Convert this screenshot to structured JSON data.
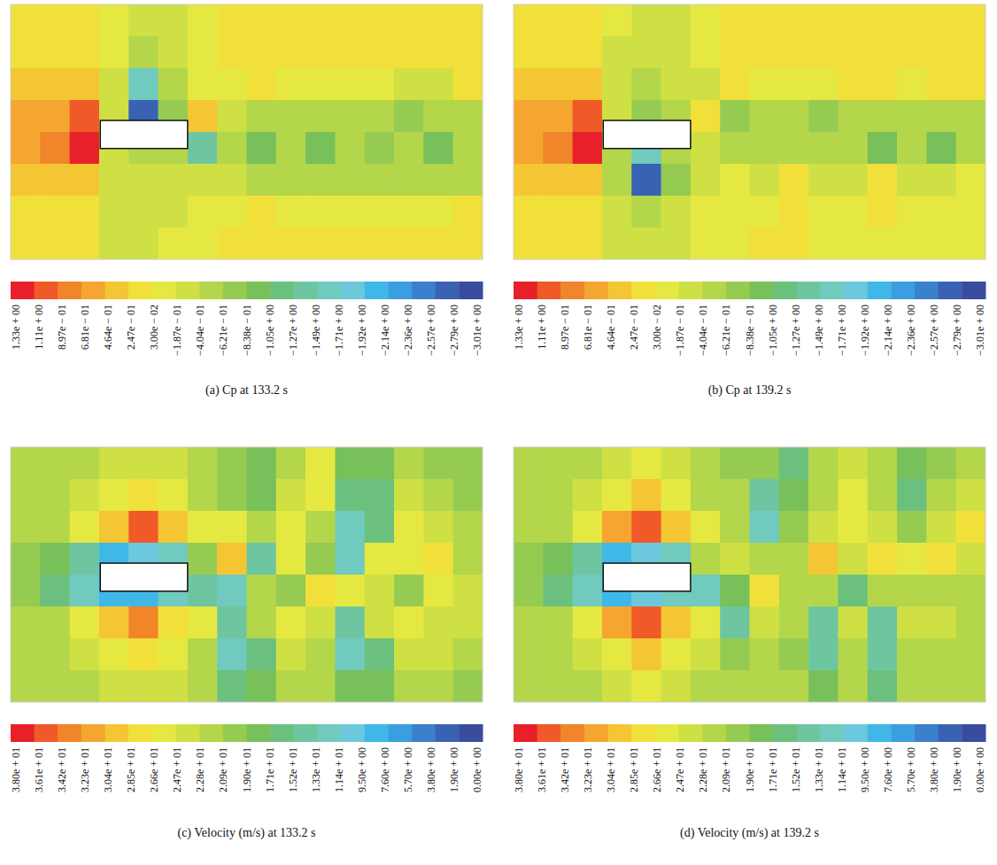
{
  "chart_data": [
    {
      "type": "heatmap",
      "title": "(a) Cp at 133.2 s",
      "tick_labels": false,
      "z": [
        [
          0.1,
          0.1,
          0.15,
          0.0,
          -0.2,
          -0.2,
          -0.05,
          0.1,
          0.1,
          0.1,
          0.1,
          0.1,
          0.1,
          0.1,
          0.1,
          0.1
        ],
        [
          0.2,
          0.2,
          0.2,
          -0.1,
          -0.5,
          -0.3,
          -0.1,
          0.1,
          0.1,
          0.1,
          0.05,
          0.1,
          0.1,
          0.1,
          0.1,
          0.1
        ],
        [
          0.3,
          0.35,
          0.3,
          -0.2,
          -1.6,
          -0.5,
          -0.15,
          0.0,
          0.05,
          -0.1,
          -0.1,
          0.0,
          -0.1,
          -0.2,
          -0.2,
          0.05
        ],
        [
          0.5,
          0.6,
          0.9,
          -0.3,
          -2.7,
          -0.8,
          0.3,
          -0.4,
          -0.6,
          -0.5,
          -0.5,
          -0.5,
          -0.6,
          -0.7,
          -0.6,
          -0.5
        ],
        [
          0.5,
          0.7,
          1.2,
          -0.4,
          -0.6,
          -0.5,
          -1.3,
          -0.5,
          -0.9,
          -0.5,
          -1.0,
          -0.5,
          -0.8,
          -0.6,
          -1.0,
          -0.6
        ],
        [
          0.35,
          0.4,
          0.3,
          -0.3,
          -0.4,
          -0.3,
          -0.3,
          -0.4,
          -0.5,
          -0.5,
          -0.5,
          -0.6,
          -0.6,
          -0.6,
          -0.6,
          -0.5
        ],
        [
          0.2,
          0.2,
          0.1,
          -0.2,
          -0.3,
          -0.2,
          -0.1,
          0.0,
          0.05,
          -0.05,
          0.0,
          -0.1,
          -0.1,
          -0.1,
          -0.1,
          0.05
        ],
        [
          0.1,
          0.1,
          0.05,
          -0.2,
          -0.2,
          -0.15,
          0.0,
          0.1,
          0.1,
          0.1,
          0.1,
          0.1,
          0.1,
          0.1,
          0.1,
          0.1
        ]
      ],
      "colorbar": {
        "range": [
          1.33,
          -3.01
        ],
        "ticks": [
          {
            "value": 1.33,
            "label": "1.33e + 00"
          },
          {
            "value": 1.11,
            "label": "1.11e + 00"
          },
          {
            "value": 0.897,
            "label": "8.97e − 01"
          },
          {
            "value": 0.681,
            "label": "6.81e − 01"
          },
          {
            "value": 0.464,
            "label": "4.64e − 01"
          },
          {
            "value": 0.247,
            "label": "2.47e − 01"
          },
          {
            "value": 0.03,
            "label": "3.00e − 02"
          },
          {
            "value": -0.187,
            "label": "−1.87e − 01"
          },
          {
            "value": -0.404,
            "label": "−4.04e − 01"
          },
          {
            "value": -0.621,
            "label": "−6.21e − 01"
          },
          {
            "value": -0.838,
            "label": "−8.38e − 01"
          },
          {
            "value": -1.05,
            "label": "−1.05e + 00"
          },
          {
            "value": -1.27,
            "label": "−1.27e + 00"
          },
          {
            "value": -1.49,
            "label": "−1.49e + 00"
          },
          {
            "value": -1.71,
            "label": "−1.71e + 00"
          },
          {
            "value": -1.92,
            "label": "−1.92e + 00"
          },
          {
            "value": -2.14,
            "label": "−2.14e + 00"
          },
          {
            "value": -2.36,
            "label": "−2.36e + 00"
          },
          {
            "value": -2.57,
            "label": "−2.57e + 00"
          },
          {
            "value": -2.79,
            "label": "−2.79e + 00"
          },
          {
            "value": -3.01,
            "label": "−3.01e + 00"
          }
        ],
        "colors": [
          "#e8202a",
          "#ef5a28",
          "#f0852a",
          "#f4a630",
          "#f4c634",
          "#f2e03a",
          "#e6e842",
          "#cfe044",
          "#b4d64a",
          "#96cb52",
          "#78c05a",
          "#6cc07e",
          "#6ec6a0",
          "#70cabe",
          "#6cc8dc",
          "#3fb8e8",
          "#3a9ee0",
          "#3a80cc",
          "#3a62b2",
          "#3a4c9e"
        ]
      }
    },
    {
      "type": "heatmap",
      "title": "(b) Cp at 139.2 s",
      "tick_labels": false,
      "z": [
        [
          0.1,
          0.1,
          0.1,
          -0.1,
          -0.2,
          -0.2,
          0.0,
          0.1,
          0.1,
          0.1,
          0.1,
          0.1,
          0.1,
          0.1,
          0.1,
          0.1
        ],
        [
          0.2,
          0.2,
          0.15,
          -0.2,
          -0.3,
          -0.3,
          -0.1,
          0.05,
          0.1,
          0.1,
          0.05,
          0.1,
          0.1,
          0.1,
          0.1,
          0.1
        ],
        [
          0.3,
          0.35,
          0.3,
          -0.3,
          -0.5,
          -0.4,
          -0.2,
          0.1,
          0.0,
          -0.1,
          0.0,
          0.1,
          0.05,
          0.0,
          0.1,
          0.05
        ],
        [
          0.5,
          0.6,
          0.9,
          -0.4,
          -0.7,
          -0.5,
          0.2,
          -0.7,
          -0.5,
          -0.5,
          -0.8,
          -0.5,
          -0.6,
          -0.5,
          -0.6,
          -0.5
        ],
        [
          0.5,
          0.7,
          1.2,
          -0.6,
          -1.5,
          -0.6,
          -0.3,
          -0.5,
          -0.6,
          -0.5,
          -0.6,
          -0.5,
          -0.9,
          -0.6,
          -0.9,
          -0.6
        ],
        [
          0.35,
          0.4,
          0.3,
          -0.5,
          -2.7,
          -0.7,
          -0.2,
          0.0,
          -0.3,
          0.1,
          -0.2,
          -0.2,
          0.1,
          -0.2,
          -0.2,
          0.0
        ],
        [
          0.2,
          0.2,
          0.1,
          -0.3,
          -0.6,
          -0.3,
          -0.1,
          0.0,
          0.0,
          0.1,
          0.0,
          -0.1,
          0.1,
          -0.1,
          -0.1,
          0.0
        ],
        [
          0.1,
          0.1,
          0.05,
          -0.2,
          -0.3,
          -0.2,
          -0.1,
          0.0,
          0.05,
          0.05,
          0.0,
          -0.05,
          0.0,
          -0.1,
          -0.1,
          0.0
        ]
      ],
      "colorbar": {
        "range": [
          1.33,
          -3.01
        ],
        "ticks": [
          {
            "value": 1.33,
            "label": "1.33e + 00"
          },
          {
            "value": 1.11,
            "label": "1.11e + 00"
          },
          {
            "value": 0.897,
            "label": "8.97e − 01"
          },
          {
            "value": 0.681,
            "label": "6.81e − 01"
          },
          {
            "value": 0.464,
            "label": "4.64e − 01"
          },
          {
            "value": 0.247,
            "label": "2.47e − 01"
          },
          {
            "value": 0.03,
            "label": "3.00e − 02"
          },
          {
            "value": -0.187,
            "label": "−1.87e − 01"
          },
          {
            "value": -0.404,
            "label": "−4.04e − 01"
          },
          {
            "value": -0.621,
            "label": "−6.21e − 01"
          },
          {
            "value": -0.838,
            "label": "−8.38e − 01"
          },
          {
            "value": -1.05,
            "label": "−1.05e + 00"
          },
          {
            "value": -1.27,
            "label": "−1.27e + 00"
          },
          {
            "value": -1.49,
            "label": "−1.49e + 00"
          },
          {
            "value": -1.71,
            "label": "−1.71e + 00"
          },
          {
            "value": -1.92,
            "label": "−1.92e + 00"
          },
          {
            "value": -2.14,
            "label": "−2.14e + 00"
          },
          {
            "value": -2.36,
            "label": "−2.36e + 00"
          },
          {
            "value": -2.57,
            "label": "−2.57e + 00"
          },
          {
            "value": -2.79,
            "label": "−2.79e + 00"
          },
          {
            "value": -3.01,
            "label": "−3.01e + 00"
          }
        ],
        "colors": [
          "#e8202a",
          "#ef5a28",
          "#f0852a",
          "#f4a630",
          "#f4c634",
          "#f2e03a",
          "#e6e842",
          "#cfe044",
          "#b4d64a",
          "#96cb52",
          "#78c05a",
          "#6cc07e",
          "#6ec6a0",
          "#70cabe",
          "#6cc8dc",
          "#3fb8e8",
          "#3a9ee0",
          "#3a80cc",
          "#3a62b2",
          "#3a4c9e"
        ]
      }
    },
    {
      "type": "heatmap",
      "title": "(c) Velocity (m/s) at 133.2 s",
      "tick_labels": false,
      "z": [
        [
          21,
          21,
          22,
          23,
          24,
          23,
          21,
          19,
          18,
          22,
          25,
          18,
          18,
          22,
          20,
          20
        ],
        [
          21,
          22,
          23,
          25,
          28,
          25,
          22,
          20,
          18,
          24,
          26,
          17,
          16,
          24,
          22,
          20
        ],
        [
          21,
          22,
          25,
          30,
          36,
          29,
          25,
          26,
          22,
          25,
          22,
          13,
          16,
          25,
          24,
          22
        ],
        [
          20,
          18,
          14,
          8,
          10,
          12,
          20,
          29,
          14,
          25,
          20,
          12,
          25,
          25,
          27,
          22
        ],
        [
          20,
          17,
          13,
          8,
          8,
          12,
          14,
          12,
          22,
          20,
          28,
          26,
          24,
          20,
          26,
          24
        ],
        [
          21,
          22,
          25,
          30,
          34,
          28,
          25,
          14,
          22,
          25,
          24,
          14,
          23,
          26,
          24,
          24
        ],
        [
          21,
          22,
          23,
          25,
          27,
          25,
          22,
          13,
          17,
          24,
          22,
          13,
          17,
          24,
          23,
          22
        ],
        [
          21,
          21,
          22,
          23,
          24,
          23,
          21,
          17,
          18,
          22,
          21,
          18,
          18,
          22,
          21,
          20
        ]
      ],
      "colorbar": {
        "range": [
          38,
          0
        ],
        "ticks": [
          {
            "value": 38,
            "label": "3.80e + 01"
          },
          {
            "value": 36.1,
            "label": "3.61e + 01"
          },
          {
            "value": 34.2,
            "label": "3.42e + 01"
          },
          {
            "value": 32.3,
            "label": "3.23e + 01"
          },
          {
            "value": 30.4,
            "label": "3.04e + 01"
          },
          {
            "value": 28.5,
            "label": "2.85e + 01"
          },
          {
            "value": 26.6,
            "label": "2.66e + 01"
          },
          {
            "value": 24.7,
            "label": "2.47e + 01"
          },
          {
            "value": 22.8,
            "label": "2.28e + 01"
          },
          {
            "value": 20.9,
            "label": "2.09e + 01"
          },
          {
            "value": 19.0,
            "label": "1.90e + 01"
          },
          {
            "value": 17.1,
            "label": "1.71e + 01"
          },
          {
            "value": 15.2,
            "label": "1.52e + 01"
          },
          {
            "value": 13.3,
            "label": "1.33e + 01"
          },
          {
            "value": 11.4,
            "label": "1.14e + 01"
          },
          {
            "value": 9.5,
            "label": "9.50e + 00"
          },
          {
            "value": 7.6,
            "label": "7.60e + 00"
          },
          {
            "value": 5.7,
            "label": "5.70e + 00"
          },
          {
            "value": 3.8,
            "label": "3.80e + 00"
          },
          {
            "value": 1.9,
            "label": "1.90e + 00"
          },
          {
            "value": 0,
            "label": "0.00e + 00"
          }
        ],
        "colors": [
          "#e8202a",
          "#ef5a28",
          "#f0852a",
          "#f4a630",
          "#f4c634",
          "#f2e03a",
          "#e6e842",
          "#cfe044",
          "#b4d64a",
          "#96cb52",
          "#78c05a",
          "#6cc07e",
          "#6ec6a0",
          "#70cabe",
          "#6cc8dc",
          "#3fb8e8",
          "#3a9ee0",
          "#3a80cc",
          "#3a62b2",
          "#3a4c9e"
        ]
      }
    },
    {
      "type": "heatmap",
      "title": "(d) Velocity (m/s) at 139.2 s",
      "tick_labels": false,
      "z": [
        [
          21,
          21,
          22,
          23,
          25,
          23,
          21,
          20,
          19,
          16,
          21,
          23,
          21,
          18,
          20,
          22
        ],
        [
          21,
          22,
          23,
          26,
          29,
          26,
          22,
          21,
          15,
          18,
          22,
          25,
          21,
          17,
          21,
          23
        ],
        [
          21,
          22,
          25,
          31,
          36,
          30,
          25,
          22,
          12,
          20,
          24,
          26,
          24,
          20,
          24,
          27
        ],
        [
          20,
          18,
          14,
          8,
          10,
          13,
          22,
          24,
          22,
          22,
          29,
          24,
          27,
          25,
          28,
          24
        ],
        [
          20,
          17,
          13,
          8,
          10,
          13,
          12,
          18,
          28,
          22,
          22,
          17,
          22,
          22,
          21,
          22
        ],
        [
          21,
          22,
          25,
          31,
          36,
          30,
          25,
          14,
          24,
          22,
          15,
          24,
          15,
          23,
          23,
          22
        ],
        [
          21,
          22,
          23,
          26,
          29,
          26,
          23,
          20,
          22,
          20,
          14,
          22,
          14,
          22,
          22,
          21
        ],
        [
          21,
          21,
          22,
          23,
          25,
          23,
          22,
          21,
          21,
          21,
          18,
          21,
          17,
          21,
          21,
          21
        ]
      ],
      "colorbar": {
        "range": [
          38,
          0
        ],
        "ticks": [
          {
            "value": 38,
            "label": "3.80e + 01"
          },
          {
            "value": 36.1,
            "label": "3.61e + 01"
          },
          {
            "value": 34.2,
            "label": "3.42e + 01"
          },
          {
            "value": 32.3,
            "label": "3.23e + 01"
          },
          {
            "value": 30.4,
            "label": "3.04e + 01"
          },
          {
            "value": 28.5,
            "label": "2.85e + 01"
          },
          {
            "value": 26.6,
            "label": "2.66e + 01"
          },
          {
            "value": 24.7,
            "label": "2.47e + 01"
          },
          {
            "value": 22.8,
            "label": "2.28e + 01"
          },
          {
            "value": 20.9,
            "label": "2.09e + 01"
          },
          {
            "value": 19.0,
            "label": "1.90e + 01"
          },
          {
            "value": 17.1,
            "label": "1.71e + 01"
          },
          {
            "value": 15.2,
            "label": "1.52e + 01"
          },
          {
            "value": 13.3,
            "label": "1.33e + 01"
          },
          {
            "value": 11.4,
            "label": "1.14e + 01"
          },
          {
            "value": 9.5,
            "label": "9.50e + 00"
          },
          {
            "value": 7.6,
            "label": "7.60e + 00"
          },
          {
            "value": 5.7,
            "label": "5.70e + 00"
          },
          {
            "value": 3.8,
            "label": "3.80e + 00"
          },
          {
            "value": 1.9,
            "label": "1.90e + 00"
          },
          {
            "value": 0,
            "label": "0.00e + 00"
          }
        ],
        "colors": [
          "#e8202a",
          "#ef5a28",
          "#f0852a",
          "#f4a630",
          "#f4c634",
          "#f2e03a",
          "#e6e842",
          "#cfe044",
          "#b4d64a",
          "#96cb52",
          "#78c05a",
          "#6cc07e",
          "#6ec6a0",
          "#70cabe",
          "#6cc8dc",
          "#3fb8e8",
          "#3a9ee0",
          "#3a80cc",
          "#3a62b2",
          "#3a4c9e"
        ]
      }
    }
  ]
}
